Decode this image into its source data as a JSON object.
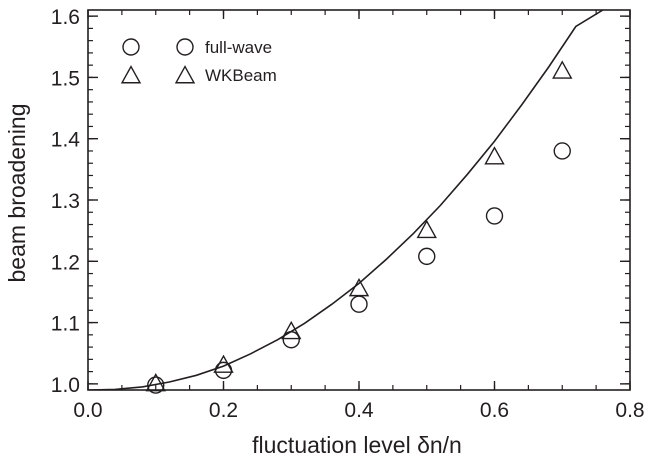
{
  "chart_data": {
    "type": "scatter",
    "xlabel": "fluctuation level δn/n",
    "ylabel": "beam broadening",
    "xlim": [
      0.0,
      0.8
    ],
    "ylim": [
      0.99,
      1.61
    ],
    "xticks": [
      "0.0",
      "0.2",
      "0.4",
      "0.6",
      "0.8"
    ],
    "yticks": [
      "1.0",
      "1.1",
      "1.2",
      "1.3",
      "1.4",
      "1.5",
      "1.6"
    ],
    "legend_position": "top-left",
    "series": [
      {
        "name": "full-wave",
        "marker": "circle",
        "x": [
          0.1,
          0.2,
          0.3,
          0.4,
          0.5,
          0.6,
          0.7
        ],
        "y": [
          0.998,
          1.022,
          1.072,
          1.13,
          1.208,
          1.274,
          1.38
        ]
      },
      {
        "name": "WKBeam",
        "marker": "triangle",
        "x": [
          0.1,
          0.2,
          0.3,
          0.4,
          0.5,
          0.6,
          0.7
        ],
        "y": [
          1.0,
          1.03,
          1.085,
          1.155,
          1.25,
          1.37,
          1.51
        ]
      },
      {
        "name": "",
        "marker": "line",
        "x": [
          0.0,
          0.04,
          0.08,
          0.12,
          0.16,
          0.2,
          0.24,
          0.28,
          0.32,
          0.36,
          0.4,
          0.44,
          0.48,
          0.52,
          0.56,
          0.6,
          0.64,
          0.68,
          0.72,
          0.76
        ],
        "y": [
          0.99,
          0.991,
          0.995,
          1.003,
          1.014,
          1.029,
          1.049,
          1.072,
          1.099,
          1.13,
          1.164,
          1.203,
          1.245,
          1.291,
          1.342,
          1.396,
          1.455,
          1.517,
          1.583,
          1.61
        ]
      }
    ]
  },
  "colors": {
    "ink": "#231f20",
    "background": "#ffffff"
  }
}
